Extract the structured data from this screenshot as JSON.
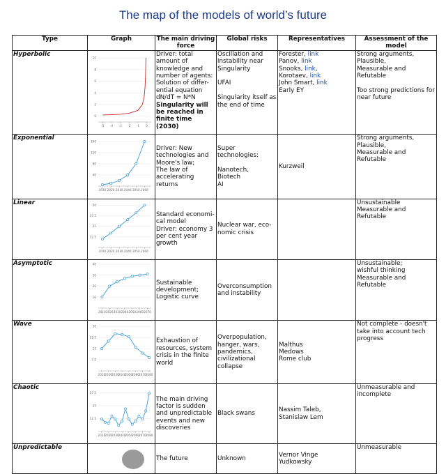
{
  "title": "The map of the models of world’s future",
  "table": {
    "headers": [
      "Type",
      "Graph",
      "The main driving force",
      "Global risks",
      "Representatives",
      "Assessment of the model"
    ],
    "rows": [
      {
        "type": "Hyperbolic",
        "graph": {
          "type": "line",
          "color": "#c62828",
          "markers": false,
          "grid": true,
          "x": [
            -5,
            -4,
            -3,
            -2,
            -1,
            -0.5,
            -0.3,
            -0.2,
            -0.15,
            -0.1
          ],
          "values": [
            0.2,
            0.25,
            0.33,
            0.5,
            1,
            2,
            3.3,
            5,
            6.7,
            10
          ],
          "xlim": [
            -5.5,
            0.5
          ],
          "ylim": [
            -1,
            10.5
          ],
          "xticks": [
            -5,
            -4,
            -3,
            -2,
            -1,
            0
          ],
          "yticks": [
            0,
            2,
            4,
            6,
            8,
            10
          ]
        },
        "driving": [
          [
            "Driver: total amount of knowledge and number of agents:",
            "Solution of differ-ential equation dN/dT = N*N"
          ],
          {
            "bold": [
              "Singularity will be reached in finite time (2030)"
            ]
          }
        ],
        "risks": [
          [
            "Oscillation and instability near Singularity"
          ],
          [
            "UFAI"
          ],
          [
            "Singularity itself as the end of time"
          ]
        ],
        "reps": [
          [
            [
              "Forester, ",
              "link"
            ],
            [
              "Panov, ",
              "link"
            ],
            [
              "Snooks, ",
              "link",
              ","
            ],
            [
              "Korotaev,  ",
              "link"
            ],
            [
              "John Smart, ",
              "link"
            ],
            "Early EY"
          ]
        ],
        "assessment": [
          [
            "Strong arguments,",
            "Plausible,",
            "Measurable and",
            "Refutable"
          ],
          [
            "Too strong predictions for near future"
          ]
        ]
      },
      {
        "type": "Exponential",
        "graph": {
          "type": "line",
          "color": "#3b9ad9",
          "markers": true,
          "grid": true,
          "x": [
            2010,
            2020,
            2030,
            2040,
            2050,
            2060
          ],
          "values": [
            5,
            10,
            20,
            40,
            80,
            160
          ],
          "xlim": [
            2005,
            2068
          ],
          "ylim": [
            0,
            170
          ],
          "xticks": [
            2010,
            2020,
            2030,
            2040,
            2050,
            2060
          ],
          "yticks": [
            40,
            80,
            120,
            160
          ]
        },
        "driving": [
          [
            "Driver: New technologies and Moore's law;",
            "The law of accelerating returns"
          ]
        ],
        "risks": [
          [
            "Super technologies:"
          ],
          [
            "Nanotech,",
            "Biotech",
            "AI"
          ]
        ],
        "reps": [
          [
            "Kurzweil"
          ]
        ],
        "assessment": [
          [
            "Strong arguments,",
            "Plausible,",
            "Measurable and",
            "Refutable"
          ]
        ]
      },
      {
        "type": "Linear",
        "graph": {
          "type": "line",
          "color": "#3b9ad9",
          "markers": true,
          "grid": true,
          "x": [
            2010,
            2020,
            2030,
            2040,
            2050,
            2060
          ],
          "values": [
            10,
            17,
            25,
            33,
            41,
            50
          ],
          "xlim": [
            2005,
            2068
          ],
          "ylim": [
            0,
            52
          ],
          "xticks": [
            2010,
            2020,
            2030,
            2040,
            2050,
            2060
          ],
          "yticks": [
            12.5,
            25,
            37.5,
            50
          ]
        },
        "driving": [
          [
            "Standard economi-cal model",
            "Driver: economy 3 per cent year growth"
          ]
        ],
        "risks": [
          [
            "Nuclear war, eco-nomic crisis"
          ]
        ],
        "reps": [],
        "assessment": [
          [
            "Unsustainable",
            "Measurable and",
            "Refutable"
          ]
        ]
      },
      {
        "type": "Asymptotic",
        "graph": {
          "type": "line",
          "color": "#3b9ad9",
          "markers": true,
          "grid": true,
          "x": [
            2010,
            2020,
            2030,
            2040,
            2050,
            2060,
            2070
          ],
          "values": [
            10,
            20,
            24,
            27,
            29,
            30,
            31
          ],
          "xlim": [
            2005,
            2075
          ],
          "ylim": [
            0,
            40
          ],
          "xticks": [
            2010,
            2020,
            2030,
            2040,
            2050,
            2060,
            2070
          ],
          "yticks": [
            10,
            20,
            30,
            40
          ]
        },
        "driving": [
          [
            "Sustainable development;",
            "Logistic curve"
          ]
        ],
        "risks": [
          [
            "Overconsumption and instability"
          ]
        ],
        "reps": [],
        "assessment": [
          [
            "Unsustainable;",
            "wishful thinking",
            "Measurable and",
            "Refutable"
          ]
        ]
      },
      {
        "type": "Wave",
        "graph": {
          "type": "line",
          "color": "#3b9ad9",
          "markers": true,
          "grid": true,
          "x": [
            2010,
            2020,
            2030,
            2040,
            2050,
            2060,
            2070,
            2080
          ],
          "values": [
            15,
            20,
            25,
            24.5,
            23,
            16,
            12,
            9
          ],
          "xlim": [
            2005,
            2083
          ],
          "ylim": [
            0,
            31
          ],
          "xticks": [
            2010,
            2020,
            2030,
            2040,
            2050,
            2060,
            2070,
            2080
          ],
          "yticks": [
            7.5,
            15,
            22.5,
            30
          ]
        },
        "driving": [
          [
            "Exhaustion of resources, system crisis in the finite world"
          ]
        ],
        "risks": [
          [
            "Overpopulation, hanger, wars, pandemics, civilizational collapse"
          ]
        ],
        "reps": [
          [
            "Malthus",
            "Medows",
            "Rome club"
          ]
        ],
        "assessment": [
          [
            "Not complete - doesn't take into account tech progress"
          ]
        ]
      },
      {
        "type": "Chaotic",
        "graph": {
          "type": "line",
          "color": "#3b9ad9",
          "markers": true,
          "grid": true,
          "x": [
            2010,
            2015,
            2020,
            2025,
            2030,
            2035,
            2040,
            2045,
            2050,
            2055,
            2060,
            2065,
            2070,
            2075,
            2080
          ],
          "values": [
            12,
            9,
            8,
            15,
            12,
            6,
            10,
            22,
            12,
            7,
            10,
            15,
            12,
            20,
            37
          ],
          "xlim": [
            2005,
            2083
          ],
          "ylim": [
            0,
            42
          ],
          "xticks": [
            2010,
            2020,
            2030,
            2040,
            2050,
            2060,
            2070,
            2080
          ],
          "yticks": [
            12.5,
            25,
            37.5
          ]
        },
        "driving": [
          [
            "The main driving factor is sudden and unpredictable events and new discoveries"
          ]
        ],
        "risks": [
          [
            "Black swans"
          ]
        ],
        "reps": [
          [
            "Nassim Taleb,",
            "Stanislaw Lem"
          ]
        ],
        "assessment": [
          [
            "Unmeasurable and incomplete"
          ]
        ]
      },
      {
        "type": "Unpredictable",
        "driving": [
          [
            "The future"
          ]
        ],
        "risks": [
          [
            "Unknown"
          ]
        ],
        "reps": [
          [
            "Vernor Vinge",
            "Yudkowsky"
          ]
        ],
        "assessment": [
          [
            "Unmeasurable"
          ]
        ]
      }
    ]
  }
}
